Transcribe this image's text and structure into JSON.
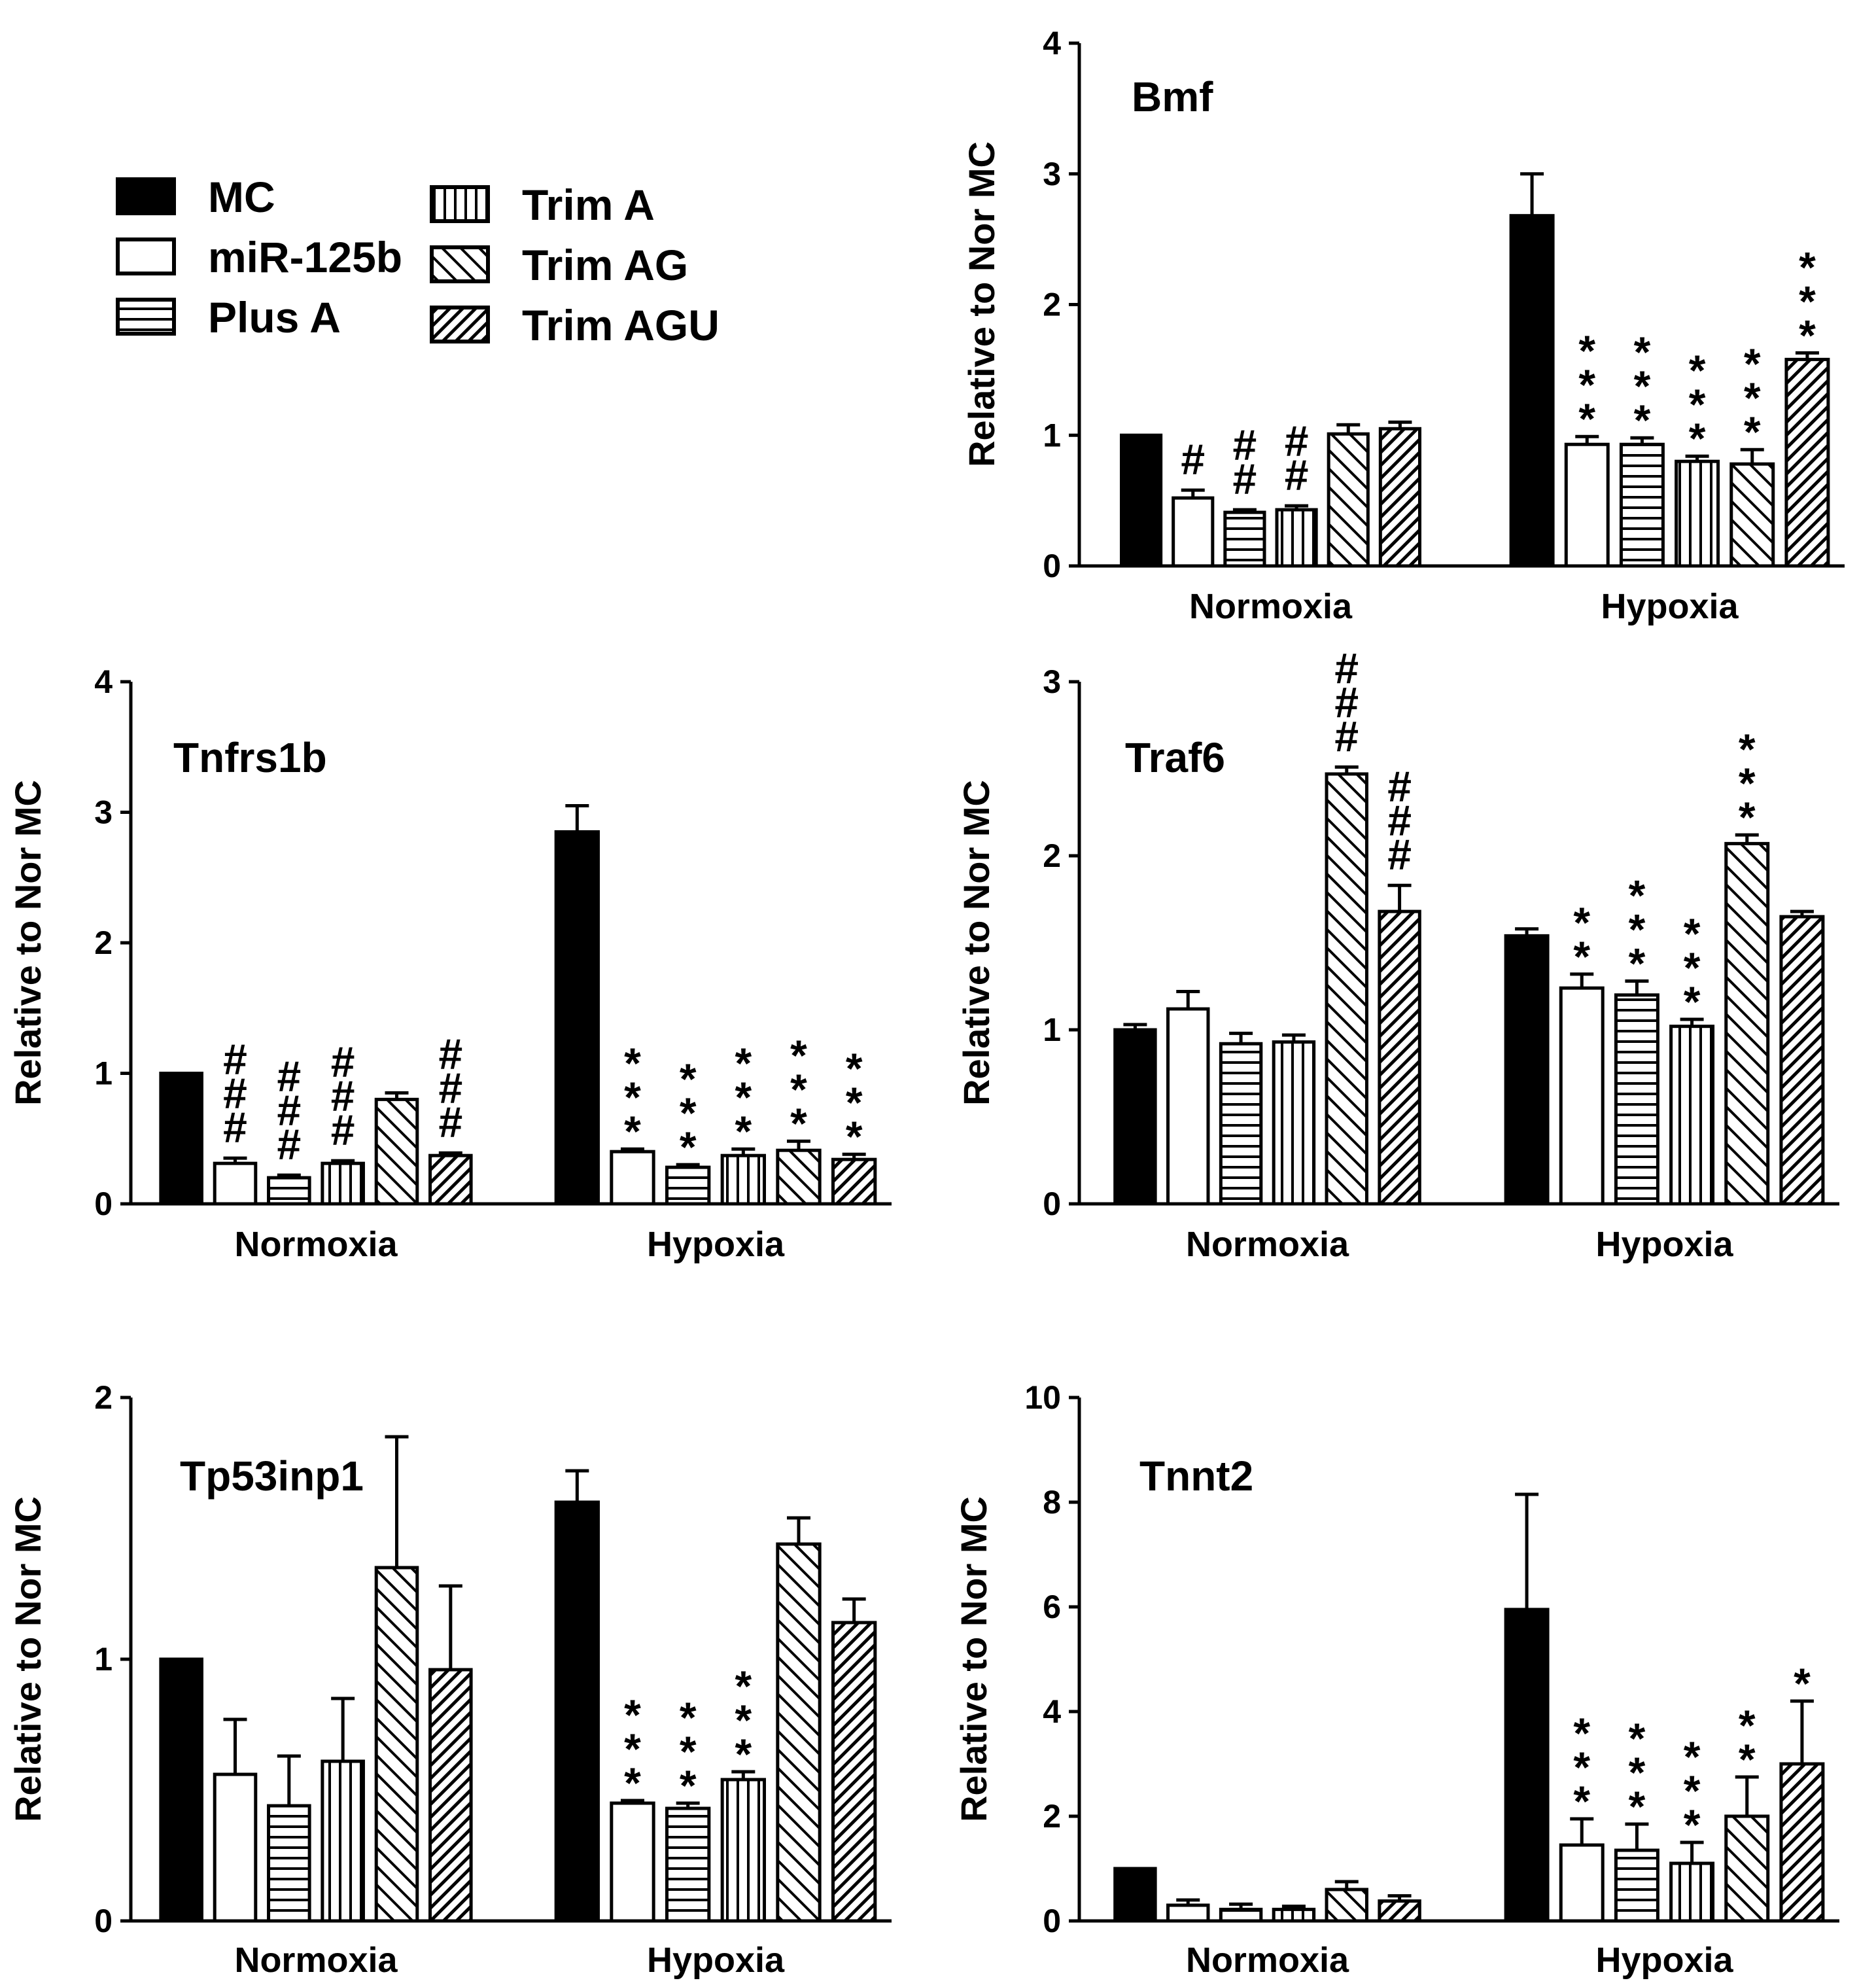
{
  "chart_data": {
    "legend": {
      "entries": [
        {
          "label": "MC",
          "pattern": "solid"
        },
        {
          "label": "miR-125b",
          "pattern": "open"
        },
        {
          "label": "Plus A",
          "pattern": "hlines"
        },
        {
          "label": "Trim A",
          "pattern": "vlines"
        },
        {
          "label": "Trim AG",
          "pattern": "diag"
        },
        {
          "label": "Trim AGU",
          "pattern": "diag-dense"
        }
      ]
    },
    "panels": [
      {
        "type": "bar",
        "title": "Bmf",
        "ylabel": "Relative to Nor MC",
        "ylim": [
          0,
          4
        ],
        "yticks": [
          "0",
          "1",
          "2",
          "3",
          "4"
        ],
        "categories": [
          "Normoxia",
          "Hypoxia"
        ],
        "series": [
          {
            "name": "MC",
            "values": [
              1.0,
              2.68
            ],
            "errors": [
              0.0,
              0.32
            ]
          },
          {
            "name": "miR-125b",
            "values": [
              0.52,
              0.93
            ],
            "errors": [
              0.06,
              0.06
            ]
          },
          {
            "name": "Plus A",
            "values": [
              0.41,
              0.93
            ],
            "errors": [
              0.02,
              0.05
            ]
          },
          {
            "name": "Trim A",
            "values": [
              0.43,
              0.8
            ],
            "errors": [
              0.03,
              0.04
            ]
          },
          {
            "name": "Trim AG",
            "values": [
              1.01,
              0.78
            ],
            "errors": [
              0.07,
              0.11
            ]
          },
          {
            "name": "Trim AGU",
            "values": [
              1.05,
              1.58
            ],
            "errors": [
              0.05,
              0.05
            ]
          }
        ],
        "significance": [
          [
            "",
            ""
          ],
          [
            "#",
            "***"
          ],
          [
            "##",
            "***"
          ],
          [
            "##",
            "***"
          ],
          [
            "",
            "***"
          ],
          [
            "",
            "***"
          ]
        ]
      },
      {
        "type": "bar",
        "title": "Tnfrs1b",
        "ylabel": "Relative to Nor MC",
        "ylim": [
          0,
          4
        ],
        "yticks": [
          "0",
          "1",
          "2",
          "3",
          "4"
        ],
        "categories": [
          "Normoxia",
          "Hypoxia"
        ],
        "series": [
          {
            "name": "MC",
            "values": [
              1.0,
              2.85
            ],
            "errors": [
              0.0,
              0.2
            ]
          },
          {
            "name": "miR-125b",
            "values": [
              0.31,
              0.4
            ],
            "errors": [
              0.04,
              0.02
            ]
          },
          {
            "name": "Plus A",
            "values": [
              0.2,
              0.28
            ],
            "errors": [
              0.02,
              0.02
            ]
          },
          {
            "name": "Trim A",
            "values": [
              0.31,
              0.37
            ],
            "errors": [
              0.02,
              0.05
            ]
          },
          {
            "name": "Trim AG",
            "values": [
              0.8,
              0.41
            ],
            "errors": [
              0.05,
              0.07
            ]
          },
          {
            "name": "Trim AGU",
            "values": [
              0.37,
              0.34
            ],
            "errors": [
              0.02,
              0.04
            ]
          }
        ],
        "significance": [
          [
            "",
            ""
          ],
          [
            "###",
            "***"
          ],
          [
            "###",
            "***"
          ],
          [
            "###",
            "***"
          ],
          [
            "",
            "***"
          ],
          [
            "###",
            "***"
          ]
        ]
      },
      {
        "type": "bar",
        "title": "Traf6",
        "ylabel": "Relative to Nor MC",
        "ylim": [
          0,
          3
        ],
        "yticks": [
          "0",
          "1",
          "2",
          "3"
        ],
        "categories": [
          "Normoxia",
          "Hypoxia"
        ],
        "series": [
          {
            "name": "MC",
            "values": [
              1.0,
              1.54
            ],
            "errors": [
              0.03,
              0.04
            ]
          },
          {
            "name": "miR-125b",
            "values": [
              1.12,
              1.24
            ],
            "errors": [
              0.1,
              0.08
            ]
          },
          {
            "name": "Plus A",
            "values": [
              0.92,
              1.2
            ],
            "errors": [
              0.06,
              0.08
            ]
          },
          {
            "name": "Trim A",
            "values": [
              0.93,
              1.02
            ],
            "errors": [
              0.04,
              0.04
            ]
          },
          {
            "name": "Trim AG",
            "values": [
              2.47,
              2.07
            ],
            "errors": [
              0.04,
              0.05
            ]
          },
          {
            "name": "Trim AGU",
            "values": [
              1.68,
              1.65
            ],
            "errors": [
              0.15,
              0.03
            ]
          }
        ],
        "significance": [
          [
            "",
            ""
          ],
          [
            "",
            "**"
          ],
          [
            "",
            "***"
          ],
          [
            "",
            "***"
          ],
          [
            "###",
            "***"
          ],
          [
            "###",
            ""
          ]
        ]
      },
      {
        "type": "bar",
        "title": "Tp53inp1",
        "ylabel": "Relative to Nor MC",
        "ylim": [
          0,
          2
        ],
        "yticks": [
          "0",
          "1",
          "2"
        ],
        "categories": [
          "Normoxia",
          "Hypoxia"
        ],
        "series": [
          {
            "name": "MC",
            "values": [
              1.0,
              1.6
            ],
            "errors": [
              0.0,
              0.12
            ]
          },
          {
            "name": "miR-125b",
            "values": [
              0.56,
              0.45
            ],
            "errors": [
              0.21,
              0.01
            ]
          },
          {
            "name": "Plus A",
            "values": [
              0.44,
              0.43
            ],
            "errors": [
              0.19,
              0.02
            ]
          },
          {
            "name": "Trim A",
            "values": [
              0.61,
              0.54
            ],
            "errors": [
              0.24,
              0.03
            ]
          },
          {
            "name": "Trim AG",
            "values": [
              1.35,
              1.44
            ],
            "errors": [
              0.5,
              0.1
            ]
          },
          {
            "name": "Trim AGU",
            "values": [
              0.96,
              1.14
            ],
            "errors": [
              0.32,
              0.09
            ]
          }
        ],
        "significance": [
          [
            "",
            ""
          ],
          [
            "",
            "***"
          ],
          [
            "",
            "***"
          ],
          [
            "",
            "***"
          ],
          [
            "",
            ""
          ],
          [
            "",
            ""
          ]
        ]
      },
      {
        "type": "bar",
        "title": "Tnnt2",
        "ylabel": "Relative to Nor MC",
        "ylim": [
          0,
          10
        ],
        "yticks": [
          "0",
          "2",
          "4",
          "6",
          "8",
          "10"
        ],
        "categories": [
          "Normoxia",
          "Hypoxia"
        ],
        "series": [
          {
            "name": "MC",
            "values": [
              1.0,
              5.95
            ],
            "errors": [
              0.0,
              2.2
            ]
          },
          {
            "name": "miR-125b",
            "values": [
              0.3,
              1.45
            ],
            "errors": [
              0.1,
              0.5
            ]
          },
          {
            "name": "Plus A",
            "values": [
              0.22,
              1.35
            ],
            "errors": [
              0.1,
              0.5
            ]
          },
          {
            "name": "Trim A",
            "values": [
              0.22,
              1.1
            ],
            "errors": [
              0.06,
              0.4
            ]
          },
          {
            "name": "Trim AG",
            "values": [
              0.6,
              2.0
            ],
            "errors": [
              0.15,
              0.75
            ]
          },
          {
            "name": "Trim AGU",
            "values": [
              0.38,
              3.0
            ],
            "errors": [
              0.1,
              1.2
            ]
          }
        ],
        "significance": [
          [
            "",
            ""
          ],
          [
            "",
            "***"
          ],
          [
            "",
            "***"
          ],
          [
            "",
            "***"
          ],
          [
            "",
            "**"
          ],
          [
            "",
            "*"
          ]
        ]
      }
    ]
  }
}
